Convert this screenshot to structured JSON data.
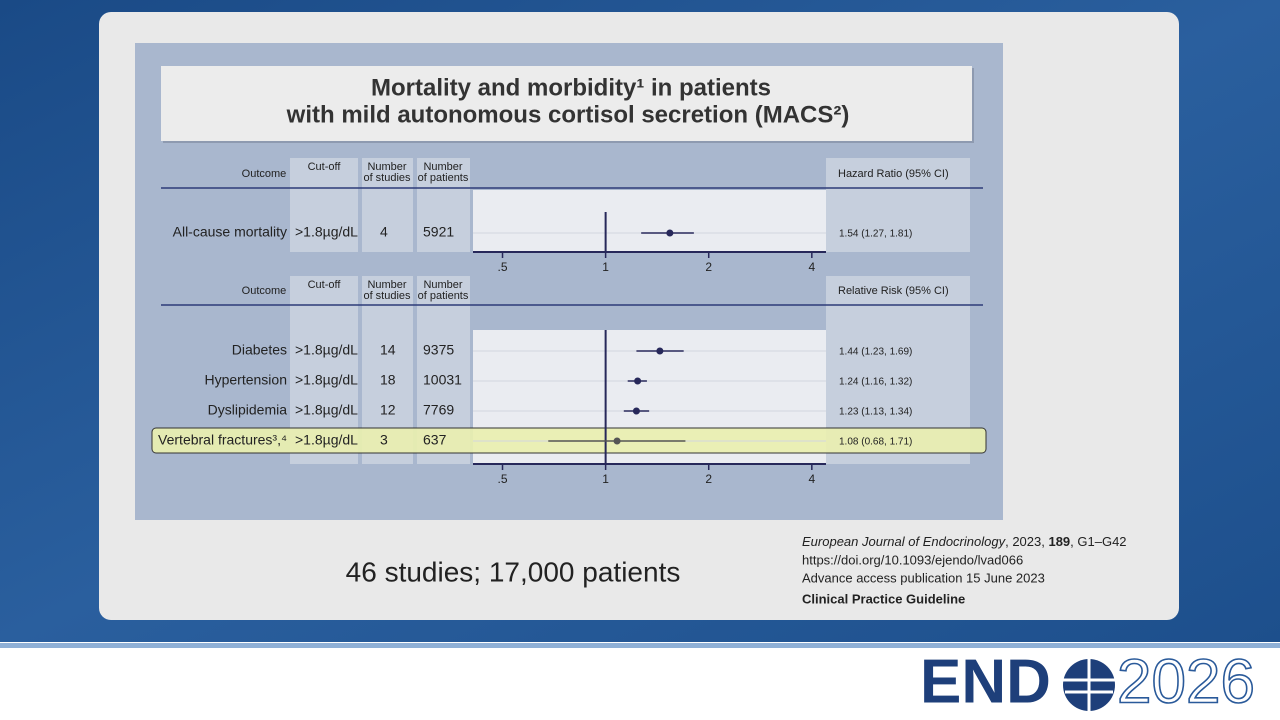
{
  "chart_data": [
    {
      "type": "forest",
      "columns": [
        [
          "Outcome"
        ],
        [
          "Cut-off"
        ],
        [
          "Number",
          "of studies"
        ],
        [
          "Number",
          "of patients"
        ]
      ],
      "effect_header": "Hazard Ratio (95% CI)",
      "categories": [
        "All-cause mortality"
      ],
      "cutoff": [
        ">1.8µg/dL"
      ],
      "studies": [
        4
      ],
      "patients": [
        5921
      ],
      "values": [
        1.54
      ],
      "ci_low": [
        1.27
      ],
      "ci_high": [
        1.81
      ],
      "value_labels": [
        "1.54 (1.27, 1.81)"
      ],
      "highlight": [
        false
      ],
      "log_scale": true,
      "xlim": [
        0.41,
        4.4
      ],
      "xticks": [
        {
          "value": 0.5,
          "label": ".5"
        },
        1,
        2,
        4
      ],
      "reference_line": 1,
      "color": "#27285a"
    },
    {
      "type": "forest",
      "columns": [
        [
          "Outcome"
        ],
        [
          "Cut-off"
        ],
        [
          "Number",
          "of studies"
        ],
        [
          "Number",
          "of patients"
        ]
      ],
      "effect_header": "Relative Risk (95% CI)",
      "categories": [
        "Diabetes",
        "Hypertension",
        "Dyslipidemia",
        "Vertebral fractures³,⁴"
      ],
      "cutoff": [
        ">1.8µg/dL",
        ">1.8µg/dL",
        ">1.8µg/dL",
        ">1.8µg/dL"
      ],
      "studies": [
        14,
        18,
        12,
        3
      ],
      "patients": [
        9375,
        10031,
        7769,
        637
      ],
      "values": [
        1.44,
        1.24,
        1.23,
        1.08
      ],
      "ci_low": [
        1.23,
        1.16,
        1.13,
        0.68
      ],
      "ci_high": [
        1.69,
        1.32,
        1.34,
        1.71
      ],
      "value_labels": [
        "1.44 (1.23, 1.69)",
        "1.24 (1.16, 1.32)",
        "1.23 (1.13, 1.34)",
        "1.08 (0.68, 1.71)"
      ],
      "highlight": [
        false,
        false,
        false,
        true
      ],
      "log_scale": true,
      "xlim": [
        0.41,
        4.4
      ],
      "xticks": [
        {
          "value": 0.5,
          "label": ".5"
        },
        1,
        2,
        4
      ],
      "reference_line": 1,
      "color": "#27285a"
    }
  ],
  "figure_title": [
    "Mortality and morbidity¹ in patients",
    "with mild autonomous cortisol secretion (MACS²)"
  ],
  "summary": "46 studies; 17,000 patients",
  "citation": {
    "line1": [
      "European Journal of Endocrinology",
      ", 2023, ",
      "189",
      ", G1–G42"
    ],
    "doi": "https://doi.org/10.1093/ejendo/lvad066",
    "access": "Advance access publication 15 June 2023",
    "kind": "Clinical Practice Guideline"
  },
  "logo": {
    "left": "END",
    "right": "2026"
  }
}
